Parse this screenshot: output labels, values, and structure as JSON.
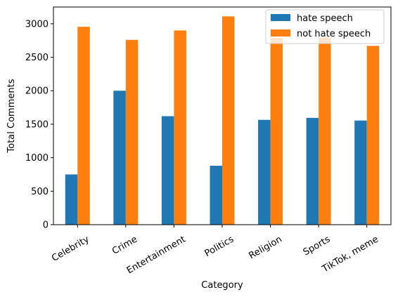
{
  "chart_data": {
    "type": "bar",
    "xlabel": "Category",
    "ylabel": "Total Comments",
    "ylim": [
      0,
      3250
    ],
    "yticks": [
      0,
      500,
      1000,
      1500,
      2000,
      2500,
      3000
    ],
    "grid": false,
    "legend_position": "top-right",
    "categories": [
      "Celebrity",
      "Crime",
      "Entertainment",
      "Politics",
      "Religion",
      "Sports",
      "TikTok, meme"
    ],
    "series": [
      {
        "name": "hate speech",
        "color": "#1f77b4",
        "values": [
          750,
          2000,
          1620,
          880,
          1565,
          1595,
          1555
        ]
      },
      {
        "name": "not hate speech",
        "color": "#ff7f0e",
        "values": [
          2955,
          2760,
          2900,
          3110,
          2790,
          2795,
          2670
        ]
      }
    ]
  }
}
